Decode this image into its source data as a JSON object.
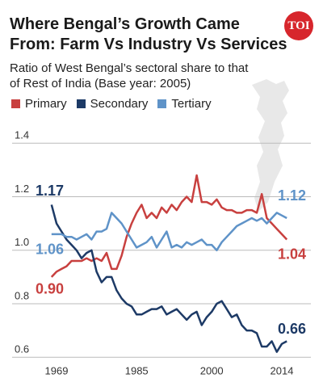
{
  "chart_data": {
    "type": "line",
    "title": "Where Bengal’s Growth Came From: Farm Vs Industry Vs Services",
    "subtitle": "Ratio of West Bengal’s sectoral share to that of Rest of India (Base year: 2005)",
    "logo": "TOI",
    "x": [
      1968,
      1969,
      1970,
      1971,
      1972,
      1973,
      1974,
      1975,
      1976,
      1977,
      1978,
      1979,
      1980,
      1981,
      1982,
      1983,
      1984,
      1985,
      1986,
      1987,
      1988,
      1989,
      1990,
      1991,
      1992,
      1993,
      1994,
      1995,
      1996,
      1997,
      1998,
      1999,
      2000,
      2001,
      2002,
      2003,
      2004,
      2005,
      2006,
      2007,
      2008,
      2009,
      2010,
      2011,
      2012,
      2013,
      2014,
      2015
    ],
    "xlim": [
      1965,
      2017
    ],
    "xticks": [
      1969,
      1985,
      2000,
      2014
    ],
    "ylim": [
      0.56,
      1.44
    ],
    "yticks": [
      0.6,
      0.8,
      {
        "value": 1.0,
        "label": "1.0"
      },
      1.2,
      1.4
    ],
    "grid": true,
    "series": [
      {
        "name": "Primary",
        "color": "#c8403f",
        "values": [
          0.9,
          0.92,
          0.93,
          0.94,
          0.96,
          0.96,
          0.96,
          0.97,
          0.96,
          0.97,
          0.96,
          0.99,
          0.93,
          0.93,
          0.98,
          1.05,
          1.1,
          1.14,
          1.17,
          1.12,
          1.14,
          1.12,
          1.16,
          1.14,
          1.17,
          1.15,
          1.18,
          1.2,
          1.18,
          1.28,
          1.18,
          1.18,
          1.17,
          1.19,
          1.16,
          1.15,
          1.15,
          1.14,
          1.14,
          1.15,
          1.15,
          1.14,
          1.21,
          1.12,
          1.1,
          1.08,
          1.06,
          1.04
        ],
        "start_label": "0.90",
        "end_label": "1.04"
      },
      {
        "name": "Secondary",
        "color": "#1d3a66",
        "values": [
          1.17,
          1.1,
          1.07,
          1.04,
          1.02,
          1.0,
          0.97,
          0.99,
          1.0,
          0.92,
          0.88,
          0.9,
          0.9,
          0.85,
          0.82,
          0.8,
          0.79,
          0.76,
          0.76,
          0.77,
          0.78,
          0.78,
          0.79,
          0.76,
          0.77,
          0.78,
          0.76,
          0.74,
          0.76,
          0.77,
          0.72,
          0.75,
          0.77,
          0.8,
          0.81,
          0.78,
          0.75,
          0.76,
          0.72,
          0.7,
          0.7,
          0.69,
          0.64,
          0.64,
          0.66,
          0.62,
          0.65,
          0.66
        ],
        "start_label": "1.17",
        "end_label": "0.66"
      },
      {
        "name": "Tertiary",
        "color": "#5f93c8",
        "values": [
          1.06,
          1.06,
          1.06,
          1.05,
          1.05,
          1.04,
          1.05,
          1.06,
          1.04,
          1.07,
          1.07,
          1.08,
          1.14,
          1.12,
          1.1,
          1.07,
          1.04,
          1.01,
          1.02,
          1.03,
          1.05,
          1.01,
          1.04,
          1.07,
          1.01,
          1.02,
          1.01,
          1.03,
          1.02,
          1.03,
          1.04,
          1.02,
          1.02,
          1.0,
          1.03,
          1.05,
          1.07,
          1.09,
          1.1,
          1.11,
          1.12,
          1.11,
          1.12,
          1.1,
          1.12,
          1.14,
          1.13,
          1.12
        ],
        "start_label": "1.06",
        "end_label": "1.12"
      }
    ]
  }
}
